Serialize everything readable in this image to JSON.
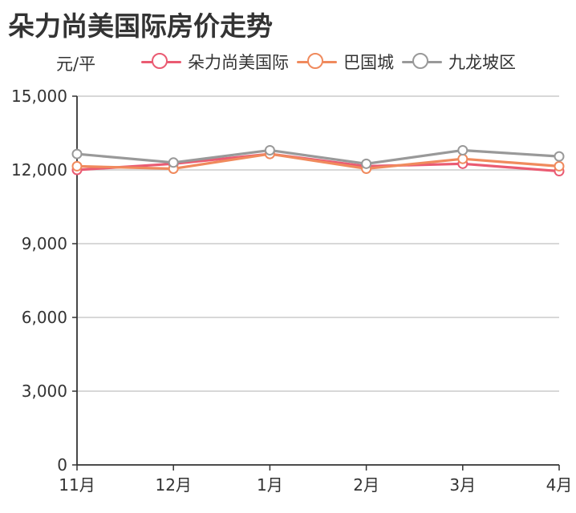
{
  "title": "朵力尚美国际房价走势",
  "unit_label": "元/平",
  "legend": [
    {
      "label": "朵力尚美国际",
      "color": "#ea5b72"
    },
    {
      "label": "巴国城",
      "color": "#f08a5d"
    },
    {
      "label": "九龙坡区",
      "color": "#999999"
    }
  ],
  "chart_data": {
    "type": "line",
    "categories": [
      "11月",
      "12月",
      "1月",
      "2月",
      "3月",
      "4月"
    ],
    "y_ticks": [
      "0",
      "3,000",
      "6,000",
      "9,000",
      "12,000",
      "15,000"
    ],
    "ylim": [
      0,
      15000
    ],
    "series": [
      {
        "name": "朵力尚美国际",
        "color": "#ea5b72",
        "values": [
          12000,
          12250,
          12650,
          12150,
          12250,
          11950
        ]
      },
      {
        "name": "巴国城",
        "color": "#f08a5d",
        "values": [
          12150,
          12050,
          12650,
          12050,
          12450,
          12150
        ]
      },
      {
        "name": "九龙坡区",
        "color": "#999999",
        "values": [
          12650,
          12300,
          12800,
          12250,
          12800,
          12550
        ]
      }
    ],
    "grid": true,
    "legend_position": "top-center"
  }
}
